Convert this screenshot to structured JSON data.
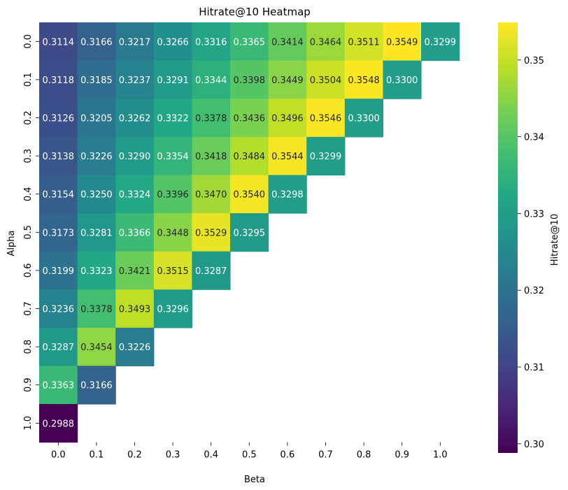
{
  "chart_data": {
    "type": "heatmap",
    "title": "Hitrate@10 Heatmap",
    "xlabel": "Beta",
    "ylabel": "Alpha",
    "x_categories": [
      "0.0",
      "0.1",
      "0.2",
      "0.3",
      "0.4",
      "0.5",
      "0.6",
      "0.7",
      "0.8",
      "0.9",
      "1.0"
    ],
    "y_categories": [
      "0.0",
      "0.1",
      "0.2",
      "0.3",
      "0.4",
      "0.5",
      "0.6",
      "0.7",
      "0.8",
      "0.9",
      "1.0"
    ],
    "values": [
      [
        "0.3114",
        "0.3166",
        "0.3217",
        "0.3266",
        "0.3316",
        "0.3365",
        "0.3414",
        "0.3464",
        "0.3511",
        "0.3549",
        "0.3299"
      ],
      [
        "0.3118",
        "0.3185",
        "0.3237",
        "0.3291",
        "0.3344",
        "0.3398",
        "0.3449",
        "0.3504",
        "0.3548",
        "0.3300"
      ],
      [
        "0.3126",
        "0.3205",
        "0.3262",
        "0.3322",
        "0.3378",
        "0.3436",
        "0.3496",
        "0.3546",
        "0.3300"
      ],
      [
        "0.3138",
        "0.3226",
        "0.3290",
        "0.3354",
        "0.3418",
        "0.3484",
        "0.3544",
        "0.3299"
      ],
      [
        "0.3154",
        "0.3250",
        "0.3324",
        "0.3396",
        "0.3470",
        "0.3540",
        "0.3298"
      ],
      [
        "0.3173",
        "0.3281",
        "0.3366",
        "0.3448",
        "0.3529",
        "0.3295"
      ],
      [
        "0.3199",
        "0.3323",
        "0.3421",
        "0.3515",
        "0.3287"
      ],
      [
        "0.3236",
        "0.3378",
        "0.3493",
        "0.3296"
      ],
      [
        "0.3287",
        "0.3454",
        "0.3226"
      ],
      [
        "0.3363",
        "0.3166"
      ],
      [
        "0.2988"
      ]
    ],
    "colorbar": {
      "label": "Hitrate@10",
      "colormap": "viridis",
      "range": [
        0.2988,
        0.3549
      ],
      "ticks": [
        "0.30",
        "0.31",
        "0.32",
        "0.33",
        "0.34",
        "0.35"
      ]
    }
  }
}
